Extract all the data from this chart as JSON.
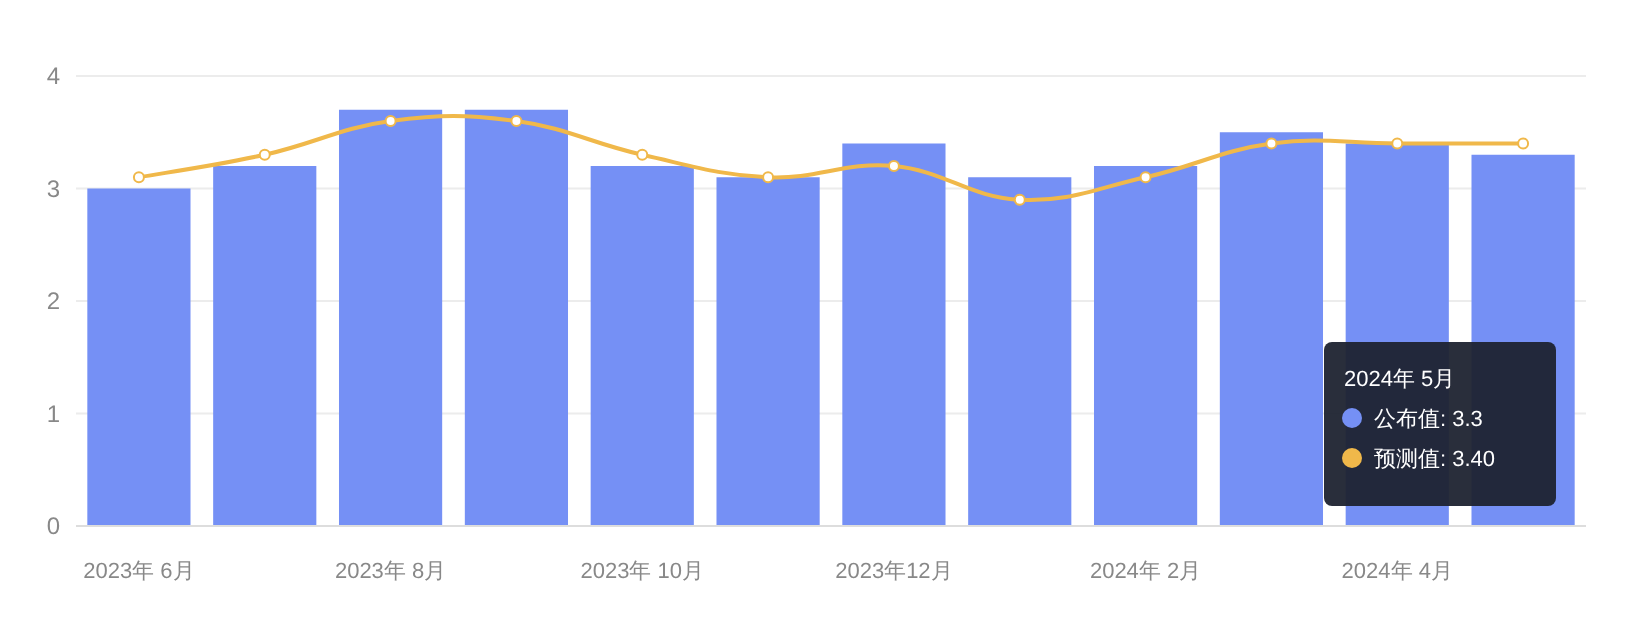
{
  "chart_data": {
    "type": "bar",
    "categories": [
      "2023年 6月",
      null,
      "2023年 8月",
      null,
      "2023年 10月",
      null,
      "2023年12月",
      null,
      "2024年 2月",
      null,
      "2024年 4月",
      null
    ],
    "series": [
      {
        "color": "#7590f5",
        "values": [
          3.0,
          3.2,
          3.7,
          3.7,
          3.2,
          3.1,
          3.4,
          3.1,
          3.2,
          3.5,
          3.4,
          3.3
        ]
      },
      {
        "type": "line",
        "color": "#f0b84a",
        "values": [
          3.1,
          3.3,
          3.6,
          3.6,
          3.3,
          3.1,
          3.2,
          2.9,
          3.1,
          3.4,
          3.4,
          3.4
        ]
      }
    ],
    "ylim": [
      0,
      4
    ],
    "yticks": [
      0,
      1,
      2,
      3,
      4
    ],
    "grid": "y",
    "marker": "circle",
    "line_style": "solid",
    "annotations": [
      "2024年 5月",
      "公布值: 3.3",
      "预测值: 3.40"
    ]
  }
}
